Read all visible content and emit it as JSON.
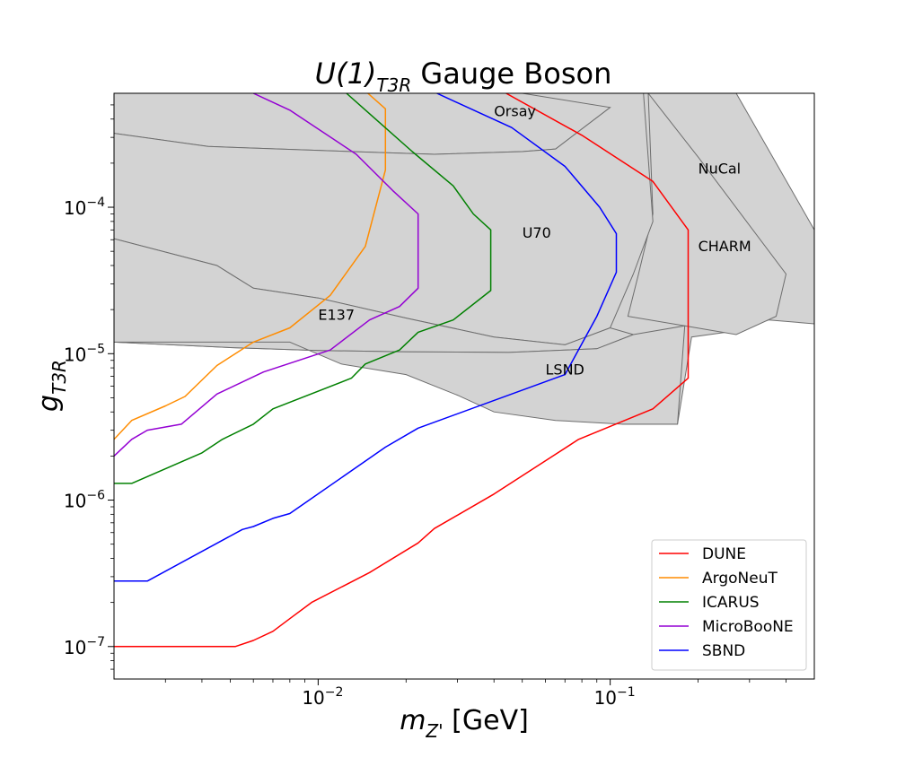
{
  "chart_data": {
    "type": "line",
    "title": {
      "prefix": "U(1)",
      "subscript": "T3R",
      "suffix": " Gauge Boson"
    },
    "xlabel": {
      "symbol": "m",
      "subscript": "Z'",
      "unit": " [GeV]"
    },
    "ylabel": {
      "symbol": "g",
      "subscript": "T3R"
    },
    "x_scale": "log",
    "y_scale": "log",
    "xlim": [
      0.002,
      0.5
    ],
    "ylim": [
      6e-08,
      0.0006
    ],
    "x_ticks": [
      {
        "value": 0.01,
        "base": "10",
        "exp": "−2"
      },
      {
        "value": 0.1,
        "base": "10",
        "exp": "−1"
      }
    ],
    "y_ticks": [
      {
        "value": 1e-07,
        "base": "10",
        "exp": "−7"
      },
      {
        "value": 1e-06,
        "base": "10",
        "exp": "−6"
      },
      {
        "value": 1e-05,
        "base": "10",
        "exp": "−5"
      },
      {
        "value": 0.0001,
        "base": "10",
        "exp": "−4"
      }
    ],
    "excluded_regions": [
      {
        "name": "NuCal",
        "label_at": [
          0.2,
          0.00017
        ],
        "points": [
          [
            0.085,
            0.0006
          ],
          [
            0.27,
            0.0006
          ],
          [
            0.5,
            7e-05
          ],
          [
            0.5,
            1.6e-05
          ],
          [
            0.35,
            1.7e-05
          ],
          [
            0.25,
            1.4e-05
          ],
          [
            0.19,
            1.3e-05
          ],
          [
            0.17,
            3.3e-06
          ],
          [
            0.11,
            3.3e-06
          ],
          [
            0.065,
            4.5e-06
          ],
          [
            0.05,
            6.4e-06
          ],
          [
            0.07,
            1.2e-05
          ],
          [
            0.1,
            2.5e-05
          ],
          [
            0.085,
            0.0006
          ]
        ]
      },
      {
        "name": "CHARM",
        "label_at": [
          0.2,
          5e-05
        ],
        "points": [
          [
            0.135,
            0.0006
          ],
          [
            0.2,
            0.00022
          ],
          [
            0.4,
            3.5e-05
          ],
          [
            0.37,
            1.8e-05
          ],
          [
            0.27,
            1.35e-05
          ],
          [
            0.18,
            1.55e-05
          ],
          [
            0.115,
            1.8e-05
          ],
          [
            0.125,
            3.5e-05
          ],
          [
            0.14,
            9e-05
          ],
          [
            0.135,
            0.0006
          ]
        ]
      },
      {
        "name": "Orsay",
        "label_at": [
          0.04,
          0.00042
        ],
        "points": [
          [
            0.002,
            0.0006
          ],
          [
            0.095,
            0.0006
          ],
          [
            0.1,
            0.00048
          ],
          [
            0.065,
            0.00025
          ],
          [
            0.05,
            0.00024
          ],
          [
            0.025,
            0.00023
          ],
          [
            0.013,
            0.00024
          ],
          [
            0.0042,
            0.00026
          ],
          [
            0.002,
            0.00032
          ],
          [
            0.002,
            0.0006
          ]
        ]
      },
      {
        "name": "U70",
        "label_at": [
          0.05,
          6.2e-05
        ],
        "points": [
          [
            0.05,
            0.0006
          ],
          [
            0.13,
            0.0006
          ],
          [
            0.14,
            8e-05
          ],
          [
            0.12,
            3.5e-05
          ],
          [
            0.1,
            1.5e-05
          ],
          [
            0.07,
            1.15e-05
          ],
          [
            0.04,
            1.3e-05
          ],
          [
            0.02,
            1.75e-05
          ],
          [
            0.01,
            2.4e-05
          ],
          [
            0.006,
            2.8e-05
          ],
          [
            0.0045,
            4e-05
          ],
          [
            0.002,
            6.1e-05
          ],
          [
            0.002,
            0.00032
          ],
          [
            0.0042,
            0.00026
          ],
          [
            0.013,
            0.00024
          ],
          [
            0.025,
            0.00023
          ],
          [
            0.05,
            0.00024
          ],
          [
            0.065,
            0.00025
          ],
          [
            0.1,
            0.00048
          ],
          [
            0.05,
            0.0006
          ]
        ]
      },
      {
        "name": "E137",
        "label_at": [
          0.01,
          1.7e-05
        ],
        "points": [
          [
            0.002,
            6.1e-05
          ],
          [
            0.0045,
            4e-05
          ],
          [
            0.006,
            2.8e-05
          ],
          [
            0.01,
            2.4e-05
          ],
          [
            0.02,
            1.75e-05
          ],
          [
            0.04,
            1.3e-05
          ],
          [
            0.07,
            1.15e-05
          ],
          [
            0.1,
            1.5e-05
          ],
          [
            0.12,
            1.35e-05
          ],
          [
            0.09,
            1.08e-05
          ],
          [
            0.045,
            1.02e-05
          ],
          [
            0.02,
            1.03e-05
          ],
          [
            0.01,
            1.05e-05
          ],
          [
            0.005,
            1.1e-05
          ],
          [
            0.002,
            1.2e-05
          ],
          [
            0.002,
            6.1e-05
          ]
        ]
      },
      {
        "name": "LSND",
        "label_at": [
          0.06,
          7.2e-06
        ],
        "points": [
          [
            0.002,
            1.2e-05
          ],
          [
            0.005,
            1.1e-05
          ],
          [
            0.01,
            1.05e-05
          ],
          [
            0.02,
            1.03e-05
          ],
          [
            0.045,
            1.02e-05
          ],
          [
            0.09,
            1.08e-05
          ],
          [
            0.12,
            1.35e-05
          ],
          [
            0.18,
            1.55e-05
          ],
          [
            0.17,
            3.3e-06
          ],
          [
            0.11,
            3.3e-06
          ],
          [
            0.065,
            3.5e-06
          ],
          [
            0.04,
            4e-06
          ],
          [
            0.03,
            5.2e-06
          ],
          [
            0.02,
            7.2e-06
          ],
          [
            0.012,
            8.5e-06
          ],
          [
            0.008,
            1.2e-05
          ],
          [
            0.002,
            1.2e-05
          ]
        ]
      }
    ],
    "series": [
      {
        "name": "DUNE",
        "color": "#ff0000",
        "points": [
          [
            0.002,
            1e-07
          ],
          [
            0.0052,
            1e-07
          ],
          [
            0.006,
            1.1e-07
          ],
          [
            0.007,
            1.27e-07
          ],
          [
            0.008,
            1.55e-07
          ],
          [
            0.0095,
            2e-07
          ],
          [
            0.015,
            3.2e-07
          ],
          [
            0.022,
            5.1e-07
          ],
          [
            0.025,
            6.4e-07
          ],
          [
            0.04,
            1.1e-06
          ],
          [
            0.078,
            2.6e-06
          ],
          [
            0.14,
            4.2e-06
          ],
          [
            0.185,
            6.8e-06
          ],
          [
            0.185,
            7e-05
          ],
          [
            0.14,
            0.00015
          ],
          [
            0.08,
            0.00031
          ],
          [
            0.044,
            0.0006
          ]
        ]
      },
      {
        "name": "ArgoNeuT",
        "color": "#ff8c00",
        "points": [
          [
            0.002,
            2.6e-06
          ],
          [
            0.0023,
            3.5e-06
          ],
          [
            0.003,
            4.4e-06
          ],
          [
            0.0035,
            5.1e-06
          ],
          [
            0.0045,
            8.3e-06
          ],
          [
            0.006,
            1.2e-05
          ],
          [
            0.008,
            1.5e-05
          ],
          [
            0.011,
            2.5e-05
          ],
          [
            0.0145,
            5.4e-05
          ],
          [
            0.017,
            0.00018
          ],
          [
            0.017,
            0.00047
          ],
          [
            0.0148,
            0.0006
          ]
        ]
      },
      {
        "name": "ICARUS",
        "color": "#008000",
        "points": [
          [
            0.002,
            1.3e-06
          ],
          [
            0.0023,
            1.3e-06
          ],
          [
            0.004,
            2.1e-06
          ],
          [
            0.0047,
            2.6e-06
          ],
          [
            0.006,
            3.3e-06
          ],
          [
            0.007,
            4.2e-06
          ],
          [
            0.013,
            6.8e-06
          ],
          [
            0.0145,
            8.5e-06
          ],
          [
            0.019,
            1.06e-05
          ],
          [
            0.022,
            1.4e-05
          ],
          [
            0.029,
            1.7e-05
          ],
          [
            0.039,
            2.7e-05
          ],
          [
            0.039,
            7e-05
          ],
          [
            0.034,
            9e-05
          ],
          [
            0.029,
            0.00014
          ],
          [
            0.021,
            0.00024
          ],
          [
            0.0125,
            0.0006
          ]
        ]
      },
      {
        "name": "MicroBooNE",
        "color": "#9400d3",
        "points": [
          [
            0.002,
            2e-06
          ],
          [
            0.0023,
            2.6e-06
          ],
          [
            0.0026,
            3e-06
          ],
          [
            0.0034,
            3.3e-06
          ],
          [
            0.0045,
            5.3e-06
          ],
          [
            0.0065,
            7.5e-06
          ],
          [
            0.011,
            1.06e-05
          ],
          [
            0.015,
            1.7e-05
          ],
          [
            0.019,
            2.1e-05
          ],
          [
            0.022,
            2.8e-05
          ],
          [
            0.022,
            9e-05
          ],
          [
            0.018,
            0.00013
          ],
          [
            0.0135,
            0.00023
          ],
          [
            0.008,
            0.00046
          ],
          [
            0.006,
            0.0006
          ]
        ]
      },
      {
        "name": "SBND",
        "color": "#0000ff",
        "points": [
          [
            0.002,
            2.8e-07
          ],
          [
            0.0026,
            2.8e-07
          ],
          [
            0.0055,
            6.3e-07
          ],
          [
            0.006,
            6.6e-07
          ],
          [
            0.007,
            7.5e-07
          ],
          [
            0.008,
            8.1e-07
          ],
          [
            0.017,
            2.3e-06
          ],
          [
            0.022,
            3.1e-06
          ],
          [
            0.07,
            7.2e-06
          ],
          [
            0.09,
            1.8e-05
          ],
          [
            0.105,
            3.6e-05
          ],
          [
            0.105,
            6.6e-05
          ],
          [
            0.092,
            0.0001
          ],
          [
            0.07,
            0.00019
          ],
          [
            0.046,
            0.00035
          ],
          [
            0.0255,
            0.0006
          ]
        ]
      }
    ],
    "legend_position": "lower-right"
  }
}
